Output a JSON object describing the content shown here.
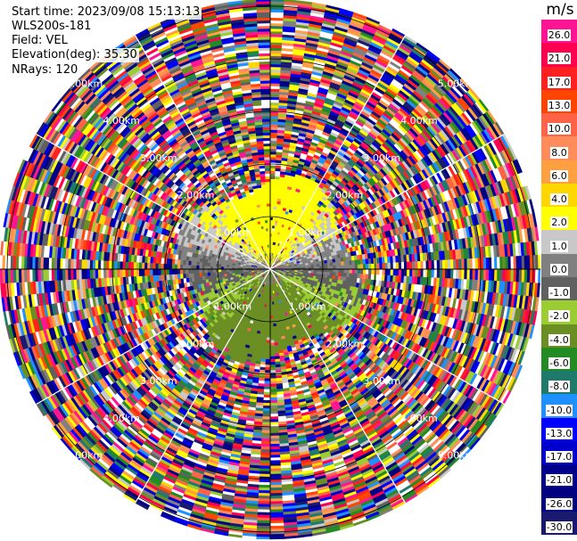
{
  "info": {
    "start_time": "Start time: 2023/09/08 15:13:13",
    "instrument": "WLS200s-181",
    "field": "Field: VEL",
    "elevation": "Elevation(deg): 35.30",
    "nrays": "NRays: 120"
  },
  "colorbar": {
    "unit": "m/s",
    "ticks": [
      "26.0",
      "21.0",
      "17.0",
      "13.0",
      "10.0",
      "8.0",
      "6.0",
      "4.0",
      "2.0",
      "1.0",
      "0.0",
      "-1.0",
      "-2.0",
      "-4.0",
      "-6.0",
      "-8.0",
      "-10.0",
      "-13.0",
      "-17.0",
      "-21.0",
      "-26.0",
      "-30.0"
    ],
    "colors": [
      "#ff1493",
      "#ff0050",
      "#ff2020",
      "#ff4500",
      "#ff6347",
      "#ff8c5a",
      "#ffa040",
      "#ffd700",
      "#ffff00",
      "#c8c8c8",
      "#808080",
      "#606060",
      "#9acd32",
      "#6b8e23",
      "#228b22",
      "#1e7b6b",
      "#1e90ff",
      "#0000ff",
      "#0000cd",
      "#00008b",
      "#000080",
      "#191970"
    ]
  },
  "chart_data": {
    "type": "heatmap",
    "title": "",
    "projection": "polar PPI",
    "field": "VEL",
    "units": "m/s",
    "rays": 120,
    "range_rings_km": [
      1.0,
      2.0,
      3.0,
      4.0,
      5.0
    ],
    "ring_labels": [
      "1.00km",
      "2.00km",
      "3.00km",
      "4.00km",
      "5.00km"
    ],
    "azimuth_spokes_deg": [
      0,
      30,
      60,
      90,
      120,
      150,
      180,
      210,
      240,
      270,
      300,
      330
    ],
    "coherent_region_max_range_km": 2.0,
    "velocity_pattern": "positive (yellow/orange) north half, negative (green) south half within ~2 km; noise beyond",
    "color_levels": [
      26.0,
      21.0,
      17.0,
      13.0,
      10.0,
      8.0,
      6.0,
      4.0,
      2.0,
      1.0,
      0.0,
      -1.0,
      -2.0,
      -4.0,
      -6.0,
      -8.0,
      -10.0,
      -13.0,
      -17.0,
      -21.0,
      -26.0,
      -30.0
    ]
  }
}
